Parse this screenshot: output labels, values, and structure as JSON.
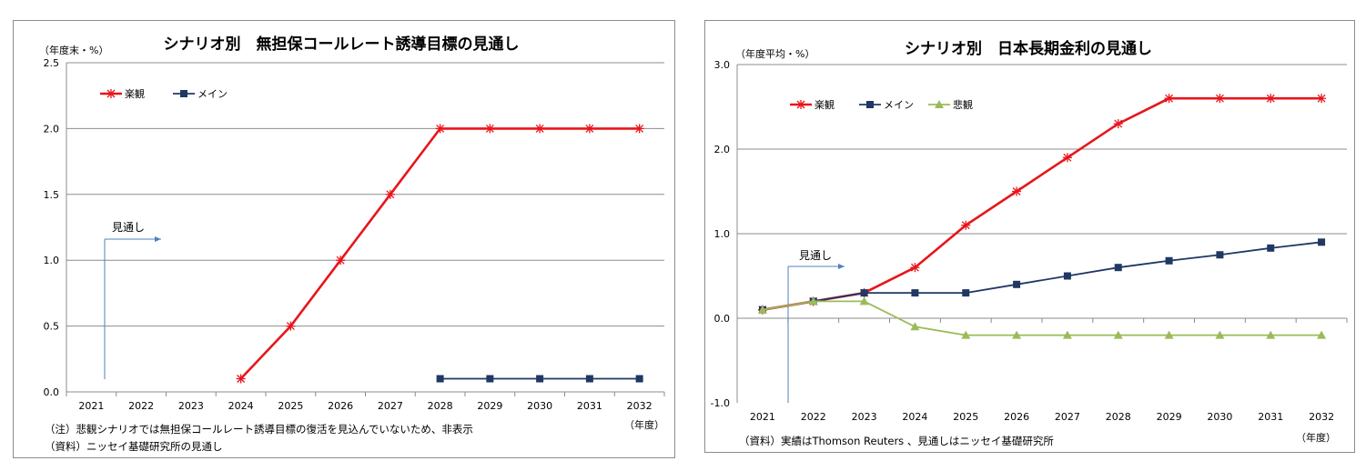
{
  "chart_data": [
    {
      "type": "line",
      "title": "シナリオ別　無担保コールレート誘導目標の見通し",
      "ylabel": "（年度末・%）",
      "xlabel": "（年度）",
      "categories": [
        "2021",
        "2022",
        "2023",
        "2024",
        "2025",
        "2026",
        "2027",
        "2028",
        "2029",
        "2030",
        "2031",
        "2032"
      ],
      "ylim": [
        0,
        2.5
      ],
      "yticks": [
        "0.0",
        "0.5",
        "1.0",
        "1.5",
        "2.0",
        "2.5"
      ],
      "grid": true,
      "legend_position": "top-left",
      "series": [
        {
          "name": "楽観",
          "color": "#e8151b",
          "marker": "asterisk",
          "values": [
            null,
            null,
            null,
            0.1,
            0.5,
            1.0,
            1.5,
            2.0,
            2.0,
            2.0,
            2.0,
            2.0
          ]
        },
        {
          "name": "メイン",
          "color": "#1f3864",
          "marker": "square",
          "values": [
            null,
            null,
            null,
            null,
            null,
            null,
            null,
            0.1,
            0.1,
            0.1,
            0.1,
            0.1
          ]
        }
      ],
      "annotation": "見通し",
      "notes": [
        "（注）悲観シナリオでは無担保コールレート誘導目標の復活を見込んでいないため、非表示",
        "（資料）ニッセイ基礎研究所の見通し"
      ]
    },
    {
      "type": "line",
      "title": "シナリオ別　日本長期金利の見通し",
      "ylabel": "（年度平均・%）",
      "xlabel": "（年度）",
      "categories": [
        "2021",
        "2022",
        "2023",
        "2024",
        "2025",
        "2026",
        "2027",
        "2028",
        "2029",
        "2030",
        "2031",
        "2032"
      ],
      "ylim": [
        -1.0,
        3.0
      ],
      "yticks": [
        "-1.0",
        "0.0",
        "1.0",
        "2.0",
        "3.0"
      ],
      "grid": true,
      "legend_position": "top-left",
      "series": [
        {
          "name": "楽観",
          "color": "#e8151b",
          "marker": "asterisk",
          "values": [
            0.1,
            0.2,
            0.3,
            0.6,
            1.1,
            1.5,
            1.9,
            2.3,
            2.6,
            2.6,
            2.6,
            2.6
          ]
        },
        {
          "name": "メイン",
          "color": "#1f3864",
          "marker": "square",
          "values": [
            0.1,
            0.2,
            0.3,
            0.3,
            0.3,
            0.4,
            0.5,
            0.6,
            0.68,
            0.75,
            0.83,
            0.9
          ]
        },
        {
          "name": "悲観",
          "color": "#9bbb59",
          "marker": "triangle",
          "values": [
            0.1,
            0.2,
            0.2,
            -0.1,
            -0.2,
            -0.2,
            -0.2,
            -0.2,
            -0.2,
            -0.2,
            -0.2,
            -0.2
          ]
        }
      ],
      "annotation": "見通し",
      "notes": [
        "（資料）実績はThomson Reuters 、見通しはニッセイ基礎研究所"
      ]
    }
  ]
}
